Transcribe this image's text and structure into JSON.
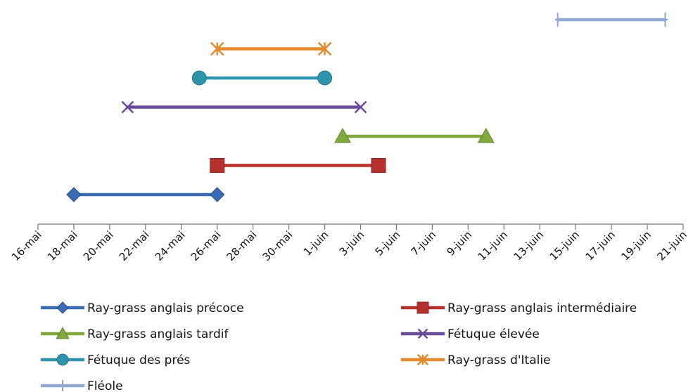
{
  "chart_data": {
    "type": "range-line",
    "title": "",
    "xlabel": "",
    "ylabel": "",
    "x_ticks": [
      "16-mai",
      "18-mai",
      "20-mai",
      "22-mai",
      "24-mai",
      "26-mai",
      "28-mai",
      "30-mai",
      "1-juin",
      "3-juin",
      "5-juin",
      "7-juin",
      "9-juin",
      "11-juin",
      "13-juin",
      "15-juin",
      "17-juin",
      "19-juin",
      "21-juin"
    ],
    "x_range": [
      "2013-05-16",
      "2013-06-21"
    ],
    "grid": false,
    "legend_position": "bottom",
    "series": [
      {
        "name": "Ray-grass anglais précoce",
        "start": "2013-05-18",
        "end": "2013-05-26",
        "color": "#3B6CB3",
        "marker": "diamond"
      },
      {
        "name": "Ray-grass anglais intermédiaire",
        "start": "2013-05-26",
        "end": "2013-06-04",
        "color": "#B7312C",
        "marker": "square"
      },
      {
        "name": "Ray-grass anglais tardif",
        "start": "2013-06-02",
        "end": "2013-06-10",
        "color": "#7FAA3B",
        "marker": "triangle"
      },
      {
        "name": "Fétuque élevée",
        "start": "2013-05-21",
        "end": "2013-06-03",
        "color": "#6B4A9B",
        "marker": "x"
      },
      {
        "name": "Fétuque des prés",
        "start": "2013-05-25",
        "end": "2013-06-01",
        "color": "#2E94AE",
        "marker": "circle"
      },
      {
        "name": "Ray-grass d'Italie",
        "start": "2013-05-26",
        "end": "2013-06-01",
        "color": "#E58A2E",
        "marker": "star"
      },
      {
        "name": "Fléole",
        "start": "2013-06-14",
        "end": "2013-06-20",
        "color": "#8FA9D3",
        "marker": "plus"
      }
    ]
  }
}
